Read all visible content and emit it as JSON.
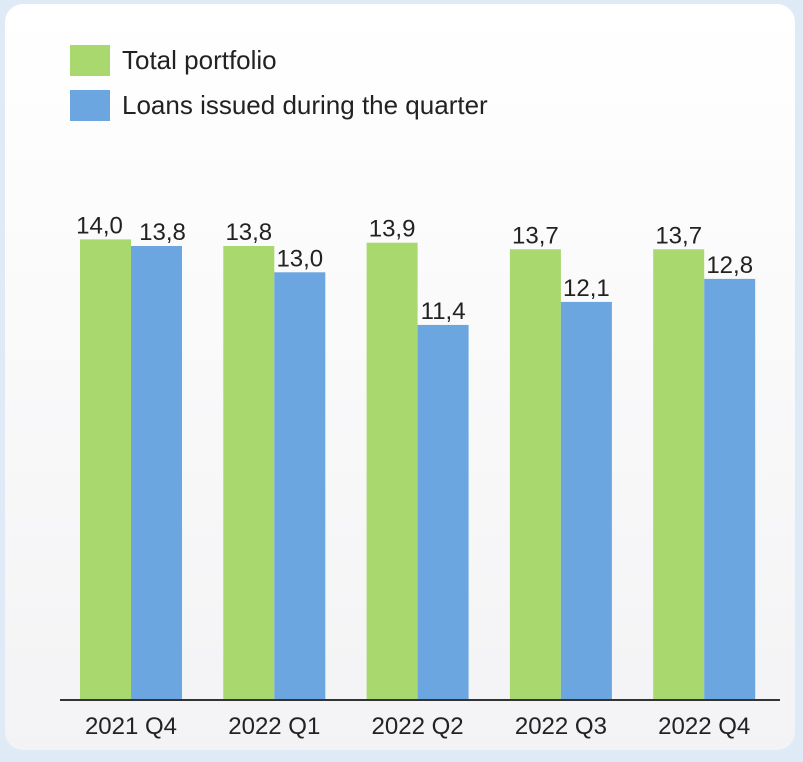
{
  "chart_data": {
    "type": "bar",
    "categories": [
      "2021 Q4",
      "2022 Q1",
      "2022 Q2",
      "2022 Q3",
      "2022 Q4"
    ],
    "series": [
      {
        "name": "Total portfolio",
        "color": "#a8d86e",
        "values": [
          14.0,
          13.8,
          13.9,
          13.7,
          13.7
        ],
        "value_labels": [
          "14,0",
          "13,8",
          "13,9",
          "13,7",
          "13,7"
        ]
      },
      {
        "name": "Loans issued during the quarter",
        "color": "#6ca6e0",
        "values": [
          13.8,
          13.0,
          11.4,
          12.1,
          12.8
        ],
        "value_labels": [
          "13,8",
          "13,0",
          "11,4",
          "12,1",
          "12,8"
        ]
      }
    ],
    "ylim": [
      0,
      16
    ],
    "legend": "top-left"
  }
}
